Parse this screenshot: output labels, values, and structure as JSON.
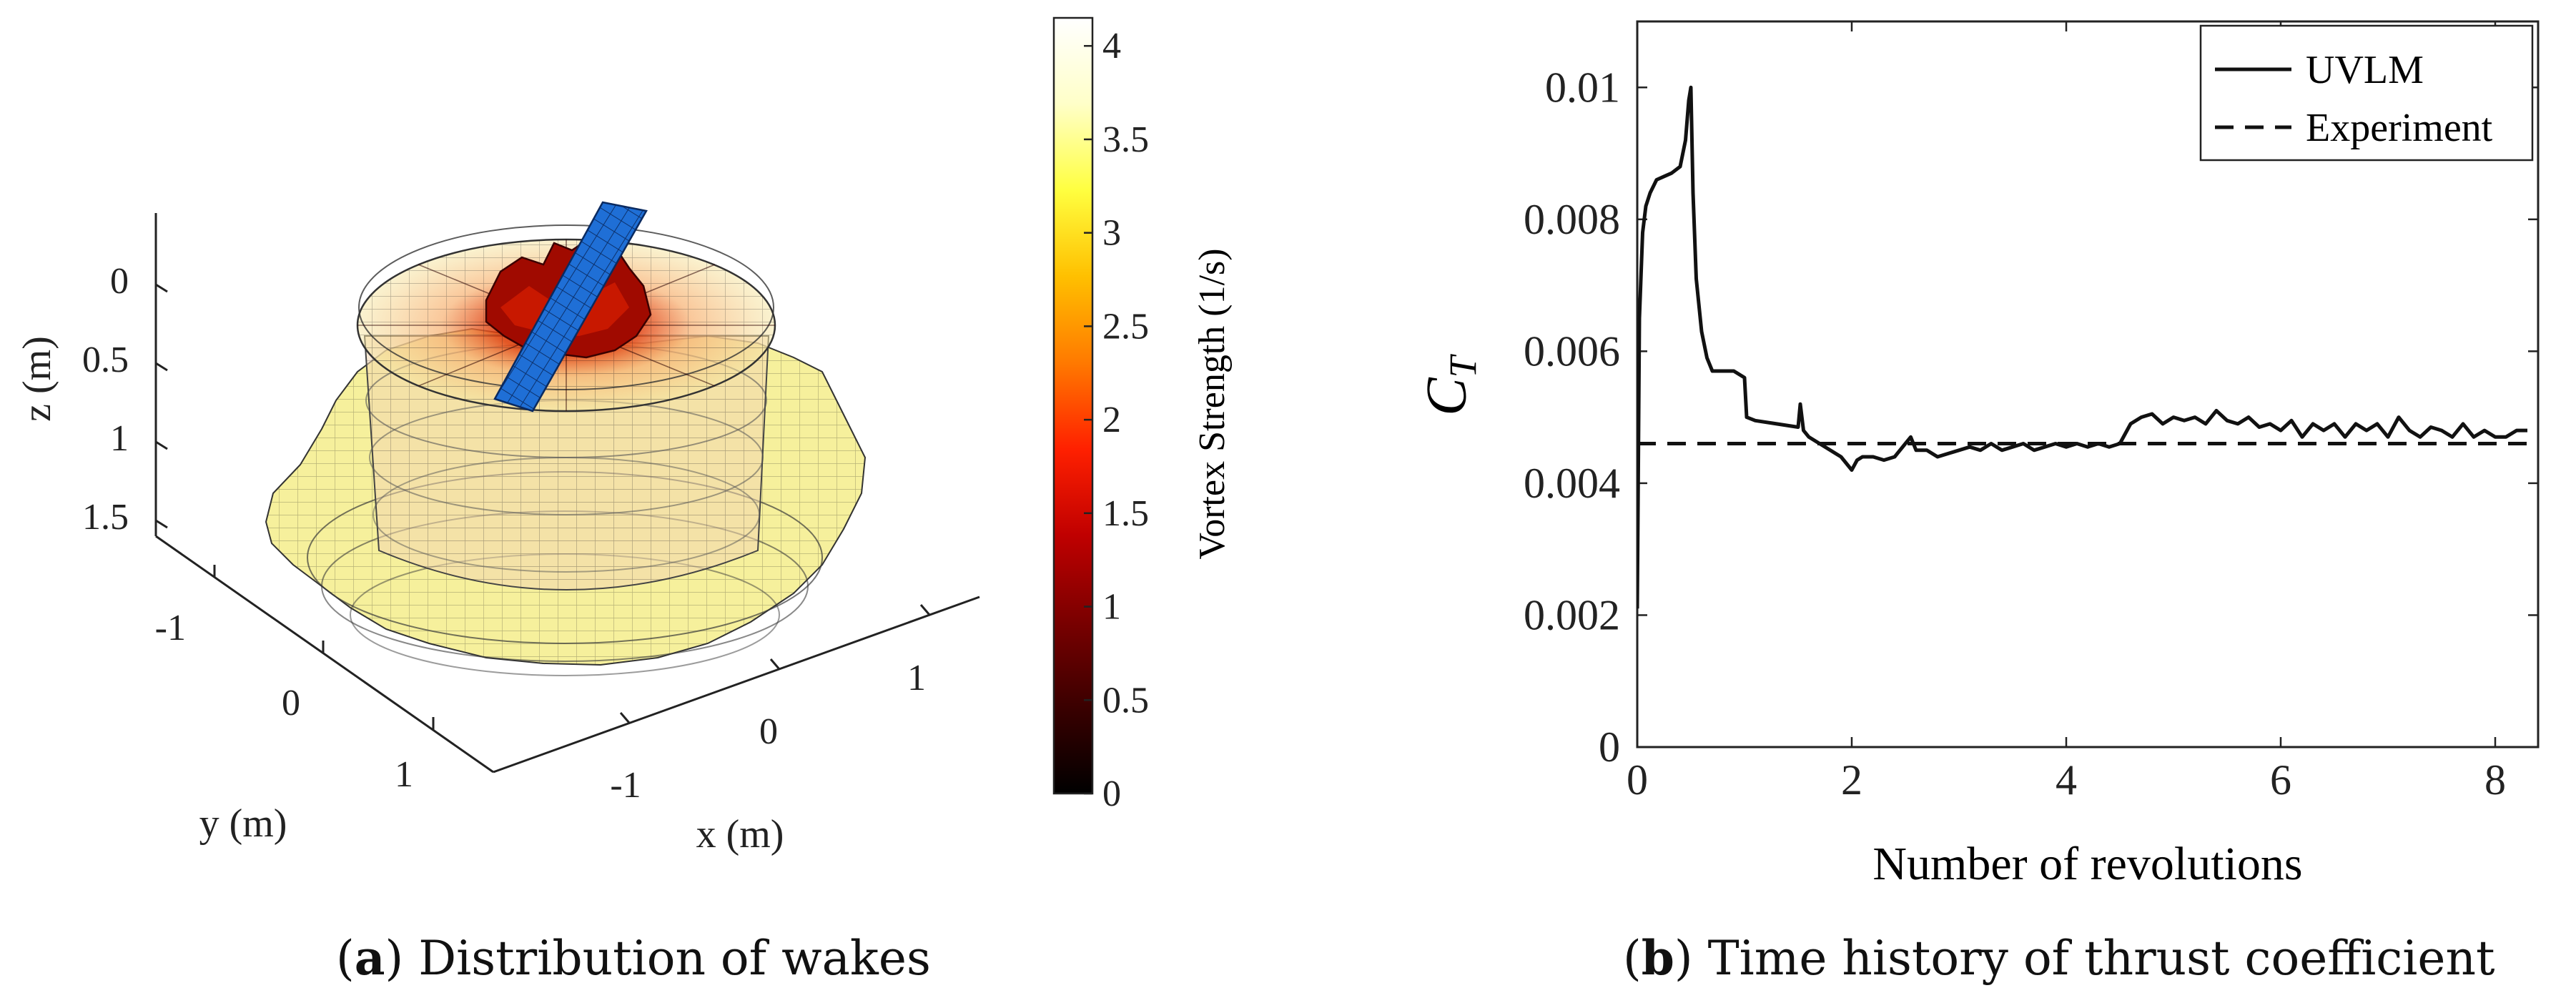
{
  "panel_a": {
    "caption_letter": "a",
    "caption_text": "Distribution of wakes",
    "z_axis_label": "z (m)",
    "y_axis_label": "y (m)",
    "x_axis_label": "x (m)",
    "z_ticks": [
      "0",
      "0.5",
      "1",
      "1.5"
    ],
    "y_ticks": [
      "-1",
      "0",
      "1"
    ],
    "x_ticks": [
      "-1",
      "0",
      "1"
    ],
    "colorbar": {
      "label": "Vortex Strength (1/s)",
      "min": 0,
      "max": 4.15,
      "ticks": [
        "0",
        "0.5",
        "1",
        "1.5",
        "2",
        "2.5",
        "3",
        "3.5",
        "4"
      ],
      "colormap": [
        "#000000",
        "#3a0000",
        "#7a0000",
        "#c00000",
        "#ff2000",
        "#ff7a00",
        "#ffc000",
        "#ffff40",
        "#ffffc8",
        "#ffffff"
      ]
    },
    "rotor_blade_color": "#1f6fd6",
    "wake_colors": {
      "inner": "#c01000",
      "mid": "#f5c080",
      "outer": "#f2ee7a"
    }
  },
  "panel_b": {
    "caption_letter": "b",
    "caption_text": "Time history of thrust coefficient",
    "chart_data": {
      "type": "line",
      "title": "",
      "xlabel": "Number of revolutions",
      "ylabel": "C_T",
      "ylabel_main": "C",
      "ylabel_sub": "T",
      "xlim": [
        0,
        8.4
      ],
      "ylim": [
        0,
        0.011
      ],
      "xticks": [
        "0",
        "2",
        "4",
        "6",
        "8"
      ],
      "yticks": [
        "0",
        "0.002",
        "0.004",
        "0.006",
        "0.008",
        "0.01"
      ],
      "legend_position": "top-right",
      "series": [
        {
          "name": "UVLM",
          "style": "solid",
          "x": [
            0.0,
            0.02,
            0.05,
            0.08,
            0.12,
            0.18,
            0.25,
            0.32,
            0.4,
            0.45,
            0.48,
            0.5,
            0.52,
            0.55,
            0.6,
            0.65,
            0.7,
            0.8,
            0.9,
            1.0,
            1.02,
            1.1,
            1.3,
            1.5,
            1.52,
            1.55,
            1.6,
            1.7,
            1.8,
            1.9,
            2.0,
            2.05,
            2.1,
            2.2,
            2.3,
            2.4,
            2.5,
            2.55,
            2.6,
            2.7,
            2.8,
            2.9,
            3.0,
            3.1,
            3.2,
            3.3,
            3.4,
            3.5,
            3.6,
            3.7,
            3.8,
            3.9,
            4.0,
            4.1,
            4.2,
            4.3,
            4.4,
            4.5,
            4.6,
            4.7,
            4.8,
            4.9,
            5.0,
            5.1,
            5.2,
            5.3,
            5.4,
            5.5,
            5.6,
            5.7,
            5.8,
            5.9,
            6.0,
            6.1,
            6.2,
            6.3,
            6.4,
            6.5,
            6.6,
            6.7,
            6.8,
            6.9,
            7.0,
            7.1,
            7.2,
            7.3,
            7.4,
            7.5,
            7.6,
            7.7,
            7.8,
            7.9,
            8.0,
            8.1,
            8.2,
            8.3
          ],
          "values": [
            0.0021,
            0.0065,
            0.0078,
            0.0082,
            0.0084,
            0.0086,
            0.00865,
            0.0087,
            0.0088,
            0.0092,
            0.0098,
            0.01,
            0.0084,
            0.0071,
            0.0063,
            0.0059,
            0.0057,
            0.0057,
            0.0057,
            0.0056,
            0.005,
            0.00495,
            0.0049,
            0.00485,
            0.0052,
            0.0048,
            0.0047,
            0.0046,
            0.0045,
            0.0044,
            0.0042,
            0.00435,
            0.0044,
            0.0044,
            0.00435,
            0.0044,
            0.0046,
            0.0047,
            0.0045,
            0.0045,
            0.0044,
            0.00445,
            0.0045,
            0.00455,
            0.0045,
            0.0046,
            0.0045,
            0.00455,
            0.0046,
            0.0045,
            0.00455,
            0.0046,
            0.00455,
            0.0046,
            0.00455,
            0.0046,
            0.00455,
            0.0046,
            0.0049,
            0.005,
            0.00505,
            0.0049,
            0.005,
            0.00495,
            0.005,
            0.0049,
            0.0051,
            0.00495,
            0.0049,
            0.005,
            0.00485,
            0.0049,
            0.0048,
            0.00495,
            0.0047,
            0.0049,
            0.0048,
            0.0049,
            0.0047,
            0.0049,
            0.0048,
            0.0049,
            0.0047,
            0.005,
            0.0048,
            0.0047,
            0.00485,
            0.0048,
            0.0047,
            0.0049,
            0.0047,
            0.0048,
            0.0047,
            0.0047,
            0.0048,
            0.0048
          ]
        },
        {
          "name": "Experiment",
          "style": "dashed",
          "x": [
            0,
            8.3
          ],
          "values": [
            0.0046,
            0.0046
          ]
        }
      ]
    }
  }
}
